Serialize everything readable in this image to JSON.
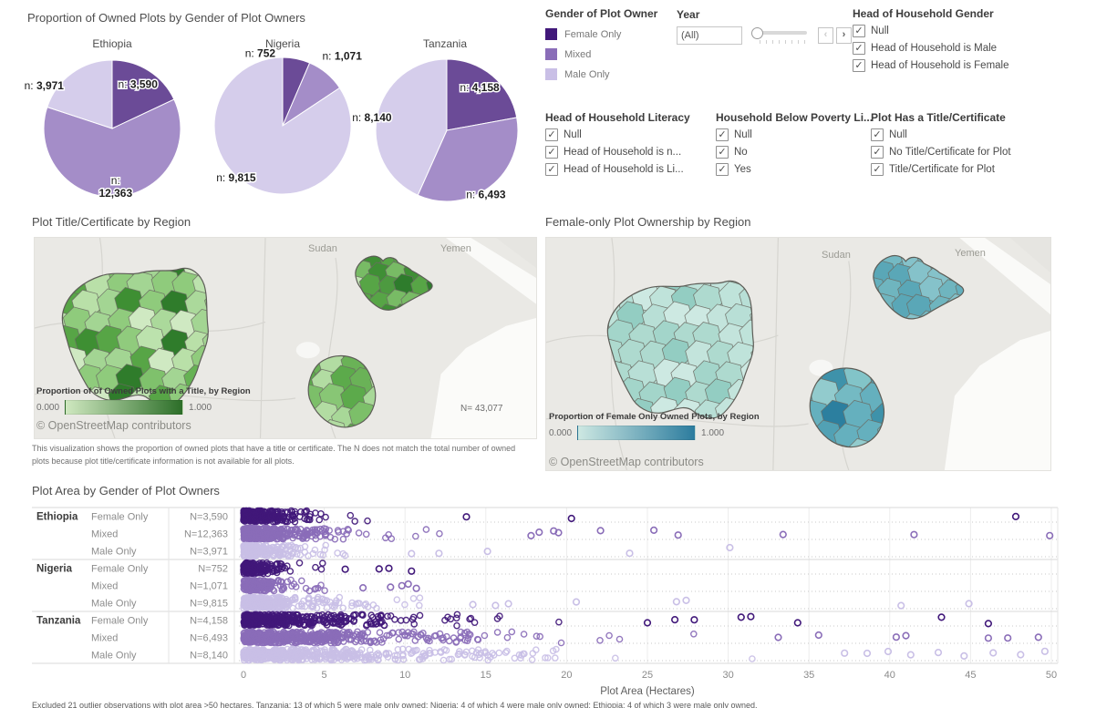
{
  "colors": {
    "female": "#41187a",
    "mixed": "#8a6db8",
    "male": "#c9bfe6",
    "map1_low": "#cfe8c0",
    "map1_high": "#2c6e28",
    "map2_low": "#cde8e2",
    "map2_high": "#2c7c9e"
  },
  "pies_section": {
    "title": "Proportion of Owned Plots by Gender of Plot Owners"
  },
  "legend": {
    "title": "Gender of Plot Owner",
    "items": [
      {
        "label": "Female Only",
        "key": "female"
      },
      {
        "label": "Mixed",
        "key": "mixed"
      },
      {
        "label": "Male Only",
        "key": "male"
      }
    ]
  },
  "year_filter": {
    "label": "Year",
    "value": "(All)",
    "prev_icon": "‹",
    "next_icon": "›"
  },
  "filters": [
    {
      "title": "Head of Household Gender",
      "items": [
        "Null",
        "Head of Household is Male",
        "Head of Household is Female"
      ],
      "checked": [
        true,
        true,
        true
      ]
    },
    {
      "title": "Head of Household Literacy",
      "items": [
        "Null",
        "Head of Household is n...",
        "Head of Household is Li..."
      ],
      "checked": [
        true,
        true,
        true
      ]
    },
    {
      "title": "Household Below Poverty Li...",
      "items": [
        "Null",
        "No",
        "Yes"
      ],
      "checked": [
        true,
        true,
        true
      ]
    },
    {
      "title": "Plot Has a Title/Certificate",
      "items": [
        "Null",
        "No Title/Certificate for Plot",
        "Title/Certificate for Plot"
      ],
      "checked": [
        true,
        true,
        true
      ]
    }
  ],
  "map1": {
    "title": "Plot Title/Certificate by Region",
    "legend_title": "Proportion of of Owned Plots with a Title, by Region",
    "legend_min": "0.000",
    "legend_max": "1.000",
    "n_annotation": "N= 43,077",
    "attribution": "© OpenStreetMap contributors",
    "labels": [
      "Sudan",
      "Yemen"
    ],
    "caption": "This visualization shows the proportion of owned plots that have a title or certificate. The N does not match the total number of owned plots because plot title/certificate information is not available for all plots.",
    "palettes": {
      "nigeria": [
        "#b9e0a8",
        "#8fcb7c",
        "#66b254",
        "#cfe9c2",
        "#a3d593",
        "#57a546",
        "#7fc16c",
        "#abd99b",
        "#3e8f33",
        "#90cb7d",
        "#2f7c2b",
        "#bce2ad"
      ],
      "ethiopia": [
        "#2e7c2c",
        "#3f8f35",
        "#57a546",
        "#78bb65",
        "#a3d593",
        "#c6e7b8",
        "#4d9a40"
      ],
      "tanzania": [
        "#7cbf69",
        "#97cf84",
        "#5caa4b",
        "#b2dca2",
        "#88c675",
        "#6ab257",
        "#a8d898"
      ]
    }
  },
  "map2": {
    "title": "Female-only Plot Ownership by Region",
    "legend_title": "Proportion of Female Only Owned Plots, by Region",
    "legend_min": "0.000",
    "legend_max": "1.000",
    "attribution": "© OpenStreetMap contributors",
    "labels": [
      "Sudan",
      "Yemen"
    ],
    "palettes": {
      "nigeria": [
        "#cde9e2",
        "#b8dfd6",
        "#a3d5ca",
        "#c3e4dc",
        "#93cdc2",
        "#aedacf",
        "#bfe3da"
      ],
      "ethiopia": [
        "#74b9c3",
        "#64afbd",
        "#85c2ca",
        "#5aa7b7",
        "#6fb5bf"
      ],
      "tanzania": [
        "#82c4c8",
        "#65b0be",
        "#92cbcd",
        "#52a1b4",
        "#74bac3",
        "#3e92aa",
        "#2c7f9f"
      ]
    }
  },
  "strip": {
    "title": "Plot Area by Gender of Plot Owners",
    "xlabel": "Plot Area (Hectares)",
    "x_ticks": [
      "0",
      "5",
      "10",
      "15",
      "20",
      "25",
      "30",
      "35",
      "40",
      "45",
      "50"
    ]
  },
  "footnote": "Excluded 21 outlier observations with plot area >50 hectares. Tanzania: 13 of which 5 were male only owned; Nigeria: 4 of which 4 were male only owned; Ethiopia: 4 of which 3 were male only owned.",
  "chart_data": [
    {
      "id": "pie-ethiopia",
      "type": "pie",
      "title": "Ethiopia",
      "labels": [
        "Female Only",
        "Mixed",
        "Male Only"
      ],
      "values": [
        3590,
        12363,
        3971
      ],
      "n_labels": [
        "n: 3,590",
        "n: 12,363",
        "n: 3,971"
      ]
    },
    {
      "id": "pie-nigeria",
      "type": "pie",
      "title": "Nigeria",
      "labels": [
        "Female Only",
        "Mixed",
        "Male Only"
      ],
      "values": [
        752,
        1071,
        9815
      ],
      "n_labels": [
        "n: 752",
        "n: 1,071",
        "n: 9,815"
      ]
    },
    {
      "id": "pie-tanzania",
      "type": "pie",
      "title": "Tanzania",
      "labels": [
        "Female Only",
        "Mixed",
        "Male Only"
      ],
      "values": [
        4158,
        6493,
        8140
      ],
      "n_labels": [
        "n: 4,158",
        "n: 6,493",
        "n: 8,140"
      ]
    },
    {
      "id": "map-title-certificate",
      "type": "heatmap",
      "subtype": "choropleth-map",
      "title": "Plot Title/Certificate by Region",
      "measure": "Proportion of of Owned Plots with a Title, by Region",
      "scale_domain": [
        0,
        1
      ],
      "n_annotation": "N= 43,077",
      "regions": [
        "Nigeria",
        "Ethiopia",
        "Tanzania"
      ]
    },
    {
      "id": "map-female-ownership",
      "type": "heatmap",
      "subtype": "choropleth-map",
      "title": "Female-only Plot Ownership by Region",
      "measure": "Proportion of Female Only Owned Plots, by Region",
      "scale_domain": [
        0,
        1
      ],
      "regions": [
        "Nigeria",
        "Ethiopia",
        "Tanzania"
      ]
    },
    {
      "id": "strip-plot",
      "type": "scatter",
      "title": "Plot Area by Gender of Plot Owners",
      "xlabel": "Plot Area (Hectares)",
      "xlim": [
        0,
        50
      ],
      "rows": [
        {
          "country": "Ethiopia",
          "gender": "Female Only",
          "n_label": "N=3,590",
          "n": 3590,
          "color": "female",
          "sim": {
            "count": 260,
            "scale": 1.3,
            "max": 12,
            "outliers": [
              13.8,
              20.3,
              47.8
            ]
          }
        },
        {
          "country": "Ethiopia",
          "gender": "Mixed",
          "n_label": "N=12,363",
          "n": 12363,
          "color": "mixed",
          "sim": {
            "count": 380,
            "scale": 1.9,
            "max": 17,
            "outliers": [
              17.8,
              18.3,
              19.2,
              19.5,
              22.1,
              25.4,
              26.9,
              33.4,
              41.5,
              49.9
            ]
          }
        },
        {
          "country": "Ethiopia",
          "gender": "Male Only",
          "n_label": "N=3,971",
          "n": 3971,
          "color": "male",
          "sim": {
            "count": 230,
            "scale": 1.1,
            "max": 9,
            "outliers": [
              10.4,
              12.1,
              15.1,
              23.9,
              30.1
            ]
          }
        },
        {
          "country": "Nigeria",
          "gender": "Female Only",
          "n_label": "N=752",
          "n": 752,
          "color": "female",
          "sim": {
            "count": 160,
            "scale": 0.9,
            "max": 5.5,
            "outliers": [
              6.3,
              8.4,
              9.0,
              10.4
            ]
          }
        },
        {
          "country": "Nigeria",
          "gender": "Mixed",
          "n_label": "N=1,071",
          "n": 1071,
          "color": "mixed",
          "sim": {
            "count": 170,
            "scale": 1.1,
            "max": 6.5,
            "outliers": [
              7.4,
              9.1,
              9.8,
              10.2,
              10.7
            ]
          }
        },
        {
          "country": "Nigeria",
          "gender": "Male Only",
          "n_label": "N=9,815",
          "n": 9815,
          "color": "male",
          "sim": {
            "count": 330,
            "scale": 2.0,
            "max": 13,
            "outliers": [
              14.2,
              15.6,
              16.4,
              20.6,
              26.8,
              27.4,
              40.7,
              44.9
            ]
          }
        },
        {
          "country": "Tanzania",
          "gender": "Female Only",
          "n_label": "N=4,158",
          "n": 4158,
          "color": "female",
          "sim": {
            "count": 430,
            "scale": 3.2,
            "max": 24,
            "outliers": [
              25.0,
              26.7,
              27.9,
              30.8,
              31.4,
              34.3,
              43.2,
              46.1
            ]
          }
        },
        {
          "country": "Tanzania",
          "gender": "Mixed",
          "n_label": "N=6,493",
          "n": 6493,
          "color": "mixed",
          "sim": {
            "count": 460,
            "scale": 4.2,
            "max": 32,
            "outliers": [
              33.1,
              35.6,
              40.4,
              41.0,
              46.1,
              47.3,
              49.2
            ]
          }
        },
        {
          "country": "Tanzania",
          "gender": "Male Only",
          "n_label": "N=8,140",
          "n": 8140,
          "color": "male",
          "sim": {
            "count": 460,
            "scale": 4.8,
            "max": 36,
            "outliers": [
              37.2,
              38.6,
              39.9,
              41.3,
              43.0,
              44.6,
              46.4,
              48.1,
              49.6
            ]
          }
        }
      ]
    }
  ]
}
